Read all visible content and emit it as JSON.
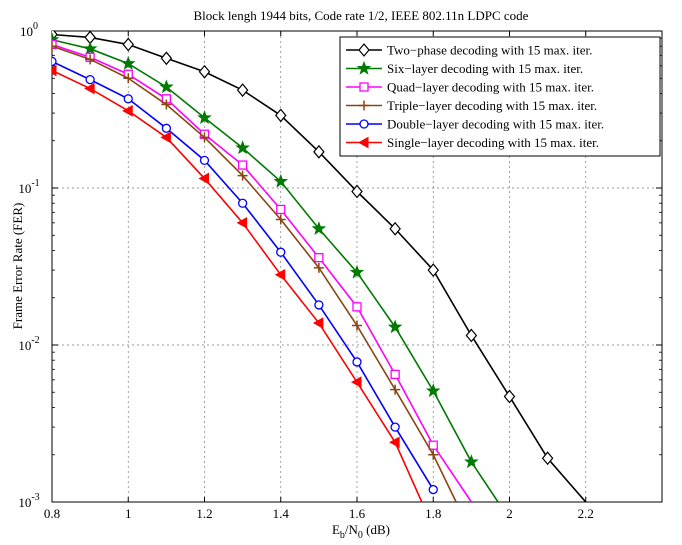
{
  "chart_data": {
    "type": "line",
    "title": "Block lengh 1944 bits, Code rate 1/2, IEEE 802.11n LDPC code",
    "xlabel": "E_b/N_0 (dB)",
    "xlabel_parts": {
      "main": "E",
      "sub1": "b",
      "mid": "/N",
      "sub2": "0",
      "tail": " (dB)"
    },
    "ylabel": "Frame Error Rate (FER)",
    "xlim": [
      0.8,
      2.4
    ],
    "ylim": [
      0.001,
      1
    ],
    "yscale": "log",
    "grid": true,
    "legend_position": "top-right",
    "x_ticks": [
      {
        "value": 0.8,
        "label": "0.8"
      },
      {
        "value": 1.0,
        "label": "1"
      },
      {
        "value": 1.2,
        "label": "1.2"
      },
      {
        "value": 1.4,
        "label": "1.4"
      },
      {
        "value": 1.6,
        "label": "1.6"
      },
      {
        "value": 1.8,
        "label": "1.8"
      },
      {
        "value": 2.0,
        "label": "2"
      },
      {
        "value": 2.2,
        "label": "2.2"
      }
    ],
    "y_ticks": [
      {
        "value": 1,
        "base": "10",
        "exp": "0"
      },
      {
        "value": 0.1,
        "base": "10",
        "exp": "-1"
      },
      {
        "value": 0.01,
        "base": "10",
        "exp": "-2"
      },
      {
        "value": 0.001,
        "base": "10",
        "exp": "-3"
      }
    ],
    "series": [
      {
        "name": "Two−phase decoding with 15 max. iter.",
        "color": "#000000",
        "marker": "diamond",
        "x": [
          0.8,
          0.9,
          1.0,
          1.1,
          1.2,
          1.3,
          1.4,
          1.5,
          1.6,
          1.7,
          1.8,
          1.9,
          2.0,
          2.1,
          2.2
        ],
        "y": [
          0.95,
          0.91,
          0.82,
          0.67,
          0.55,
          0.42,
          0.29,
          0.17,
          0.095,
          0.055,
          0.03,
          0.0115,
          0.0047,
          0.0019,
          0.001
        ]
      },
      {
        "name": "Six−layer decoding with 15 max. iter.",
        "color": "#007a00",
        "marker": "star",
        "x": [
          0.8,
          0.9,
          1.0,
          1.1,
          1.2,
          1.3,
          1.4,
          1.5,
          1.6,
          1.7,
          1.8,
          1.9,
          1.97
        ],
        "y": [
          0.88,
          0.77,
          0.62,
          0.44,
          0.28,
          0.18,
          0.11,
          0.055,
          0.029,
          0.013,
          0.0051,
          0.0018,
          0.001
        ]
      },
      {
        "name": "Quad−layer decoding with 15 max. iter.",
        "color": "#ff00ff",
        "marker": "square",
        "x": [
          0.8,
          0.9,
          1.0,
          1.1,
          1.2,
          1.3,
          1.4,
          1.5,
          1.6,
          1.7,
          1.8,
          1.9
        ],
        "y": [
          0.82,
          0.68,
          0.53,
          0.37,
          0.22,
          0.14,
          0.073,
          0.036,
          0.0175,
          0.0065,
          0.0023,
          0.001
        ]
      },
      {
        "name": "Triple−layer decoding with 15 max. iter.",
        "color": "#8b4513",
        "marker": "plus",
        "x": [
          0.8,
          0.9,
          1.0,
          1.1,
          1.2,
          1.3,
          1.4,
          1.5,
          1.6,
          1.7,
          1.8,
          1.86
        ],
        "y": [
          0.8,
          0.66,
          0.5,
          0.34,
          0.21,
          0.12,
          0.063,
          0.031,
          0.0133,
          0.0052,
          0.002,
          0.001
        ]
      },
      {
        "name": "Double−layer decoding with 15 max. iter.",
        "color": "#0000ff",
        "marker": "circle",
        "x": [
          0.8,
          0.9,
          1.0,
          1.1,
          1.2,
          1.3,
          1.4,
          1.5,
          1.6,
          1.7,
          1.8
        ],
        "y": [
          0.64,
          0.49,
          0.37,
          0.24,
          0.15,
          0.08,
          0.039,
          0.018,
          0.0078,
          0.003,
          0.0012
        ]
      },
      {
        "name": "Single−layer decoding with 15 max. iter.",
        "color": "#ff0000",
        "marker": "triangle-left",
        "x": [
          0.8,
          0.9,
          1.0,
          1.1,
          1.2,
          1.3,
          1.4,
          1.5,
          1.6,
          1.7,
          1.77
        ],
        "y": [
          0.56,
          0.43,
          0.31,
          0.21,
          0.115,
          0.06,
          0.028,
          0.0138,
          0.0058,
          0.0024,
          0.001
        ]
      }
    ]
  }
}
